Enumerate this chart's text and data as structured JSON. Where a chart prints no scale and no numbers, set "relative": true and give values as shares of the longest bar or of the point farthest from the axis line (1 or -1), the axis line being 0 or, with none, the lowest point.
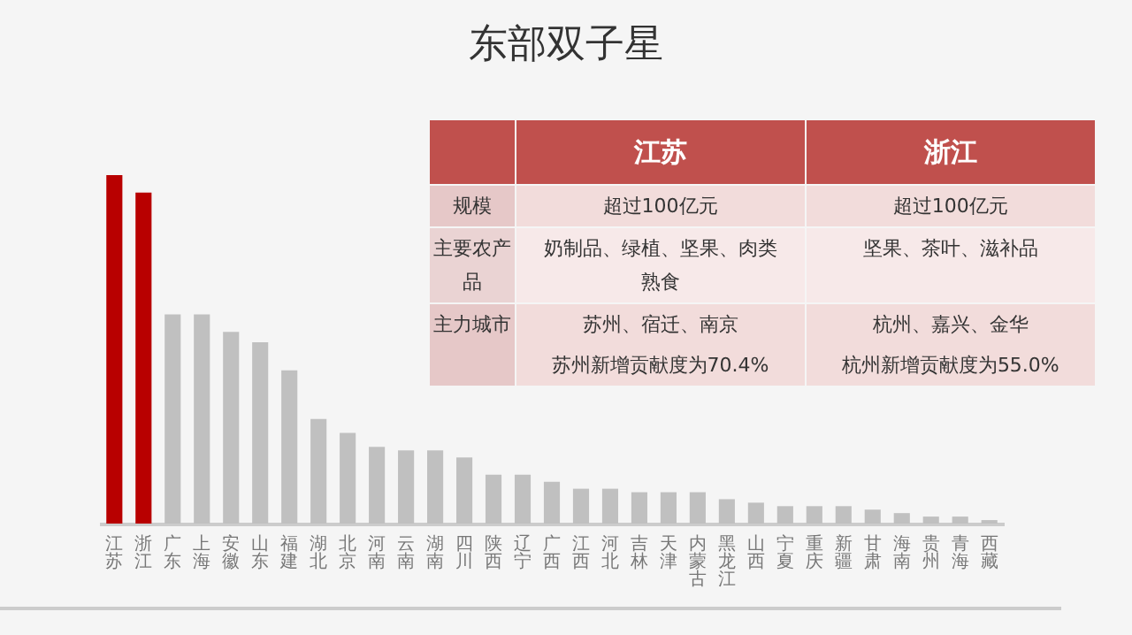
{
  "chart_data": {
    "type": "bar",
    "title": "东部双子星",
    "relative": true,
    "categories": [
      "江苏",
      "浙江",
      "广东",
      "上海",
      "安徽",
      "山东",
      "福建",
      "湖北",
      "北京",
      "河南",
      "云南",
      "湖南",
      "四川",
      "陕西",
      "辽宁",
      "广西",
      "江西",
      "河北",
      "吉林",
      "天津",
      "内蒙古",
      "黑龙江",
      "山西",
      "宁夏",
      "重庆",
      "新疆",
      "甘肃",
      "海南",
      "贵州",
      "青海",
      "西藏"
    ],
    "values": [
      1,
      0.95,
      0.6,
      0.6,
      0.55,
      0.52,
      0.44,
      0.3,
      0.26,
      0.22,
      0.21,
      0.21,
      0.19,
      0.14,
      0.14,
      0.12,
      0.1,
      0.1,
      0.09,
      0.09,
      0.09,
      0.07,
      0.06,
      0.05,
      0.05,
      0.05,
      0.04,
      0.03,
      0.02,
      0.02,
      0.01
    ],
    "colors": [
      "#b80000",
      "#b80000",
      "#c0c0c0",
      "#c0c0c0",
      "#c0c0c0",
      "#c0c0c0",
      "#c0c0c0",
      "#c0c0c0",
      "#c0c0c0",
      "#c0c0c0",
      "#c0c0c0",
      "#c0c0c0",
      "#c0c0c0",
      "#c0c0c0",
      "#c0c0c0",
      "#c0c0c0",
      "#c0c0c0",
      "#c0c0c0",
      "#c0c0c0",
      "#c0c0c0",
      "#c0c0c0",
      "#c0c0c0",
      "#c0c0c0",
      "#c0c0c0",
      "#c0c0c0",
      "#c0c0c0",
      "#c0c0c0",
      "#c0c0c0",
      "#c0c0c0",
      "#c0c0c0",
      "#c0c0c0"
    ],
    "annotations": [
      "江苏",
      "浙江",
      "规模",
      "超过100亿元",
      "超过100亿元",
      "主要农产品",
      "奶制品、绿植、坚果、肉类熟食",
      "坚果、茶叶、滋补品",
      "主力城市",
      "苏州、宿迁、南京",
      "杭州、嘉兴、金华",
      "苏州新增贡献度为70.4%",
      "杭州新增贡献度为55.0%"
    ]
  }
}
